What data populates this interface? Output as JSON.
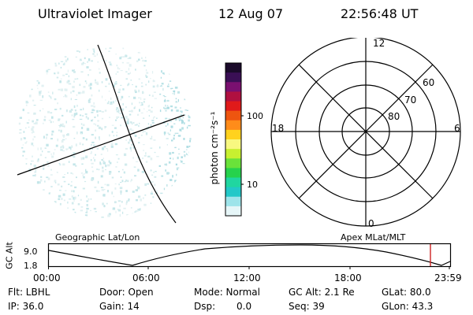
{
  "header": {
    "instrument": "Ultraviolet Imager",
    "date": "12 Aug 07",
    "time": "22:56:48 UT"
  },
  "colorbar": {
    "unit_label": "photon cm⁻²s⁻¹",
    "scale": "log",
    "tick_labels": [
      "100",
      "10"
    ],
    "colors": [
      "#1a0a2a",
      "#3a0f55",
      "#7a1070",
      "#b01040",
      "#e01a1a",
      "#ee5510",
      "#ff8c1a",
      "#ffd21e",
      "#f8f880",
      "#c8f030",
      "#6ae23a",
      "#26d24c",
      "#20d6a0",
      "#22c8c8",
      "#9ee4ea",
      "#e6f6f8"
    ]
  },
  "grid_plot": {
    "hour_labels": {
      "top": "12",
      "left": "18",
      "right": "6",
      "bottom": "0"
    },
    "lat_labels": [
      "60",
      "70",
      "80"
    ]
  },
  "timeline": {
    "left_title": "Geographic Lat/Lon",
    "right_title": "Apex MLat/MLT",
    "y_axis_label": "GC Alt",
    "y_ticks": [
      "9.0",
      "1.8"
    ],
    "x_ticks": [
      "00:00",
      "06:00",
      "12:00",
      "18:00",
      "23:59"
    ],
    "marker_color": "#cc2222"
  },
  "status": {
    "filter": "Flt: LBHL",
    "door": "Door: Open",
    "mode": "Mode: Normal",
    "gc_alt": "GC Alt: 2.1 Re",
    "glat": "GLat: 80.0",
    "ip": "IP: 36.0",
    "gain": "Gain: 14",
    "dsp_label": "Dsp:",
    "dsp_value": "0.0",
    "seq": "Seq: 39",
    "glon": "GLon: 43.3"
  }
}
